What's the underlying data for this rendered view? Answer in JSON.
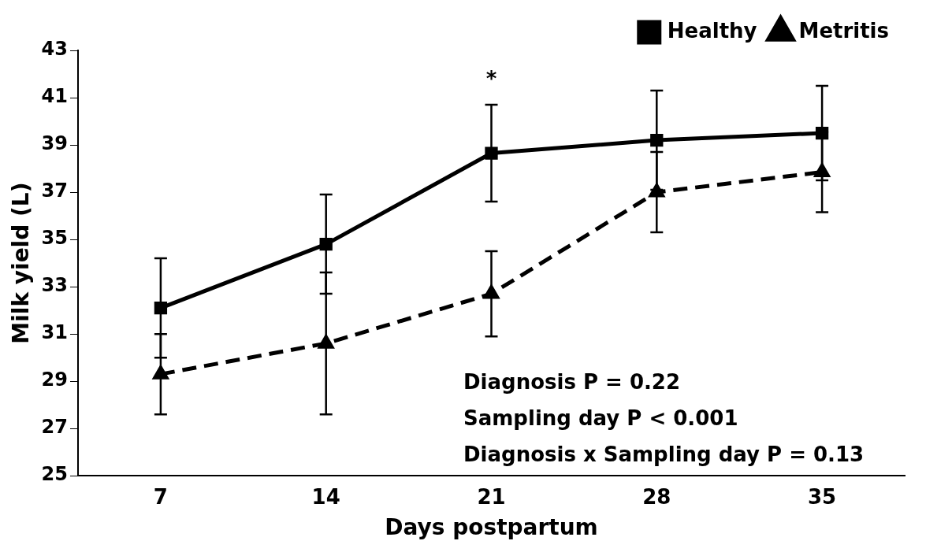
{
  "chart_data": {
    "type": "line",
    "xlabel": "Days postpartum",
    "ylabel": "Milk yield (L)",
    "categories": [
      "7",
      "14",
      "21",
      "28",
      "35"
    ],
    "series": [
      {
        "name": "Healthy",
        "color": "#000000",
        "marker": "square",
        "line_style": "solid",
        "values": [
          32.1,
          34.8,
          38.65,
          39.2,
          39.5
        ],
        "errors": [
          2.1,
          2.1,
          2.05,
          2.1,
          2.0
        ]
      },
      {
        "name": "Metritis",
        "color": "#000000",
        "marker": "triangle",
        "line_style": "dashed",
        "values": [
          29.3,
          30.6,
          32.7,
          37.0,
          37.85
        ],
        "errors": [
          1.7,
          3.0,
          1.8,
          1.7,
          1.7
        ]
      }
    ],
    "ylim": [
      25,
      43
    ],
    "yticks": [
      25,
      27,
      29,
      31,
      33,
      35,
      37,
      39,
      41,
      43
    ],
    "grid": false,
    "legend": "top right",
    "annotations": [
      {
        "text": "*",
        "x": "21",
        "y": 40.7
      },
      "Diagnosis P = 0.22",
      "Sampling day P < 0.001",
      "Diagnosis x Sampling day P = 0.13"
    ]
  }
}
